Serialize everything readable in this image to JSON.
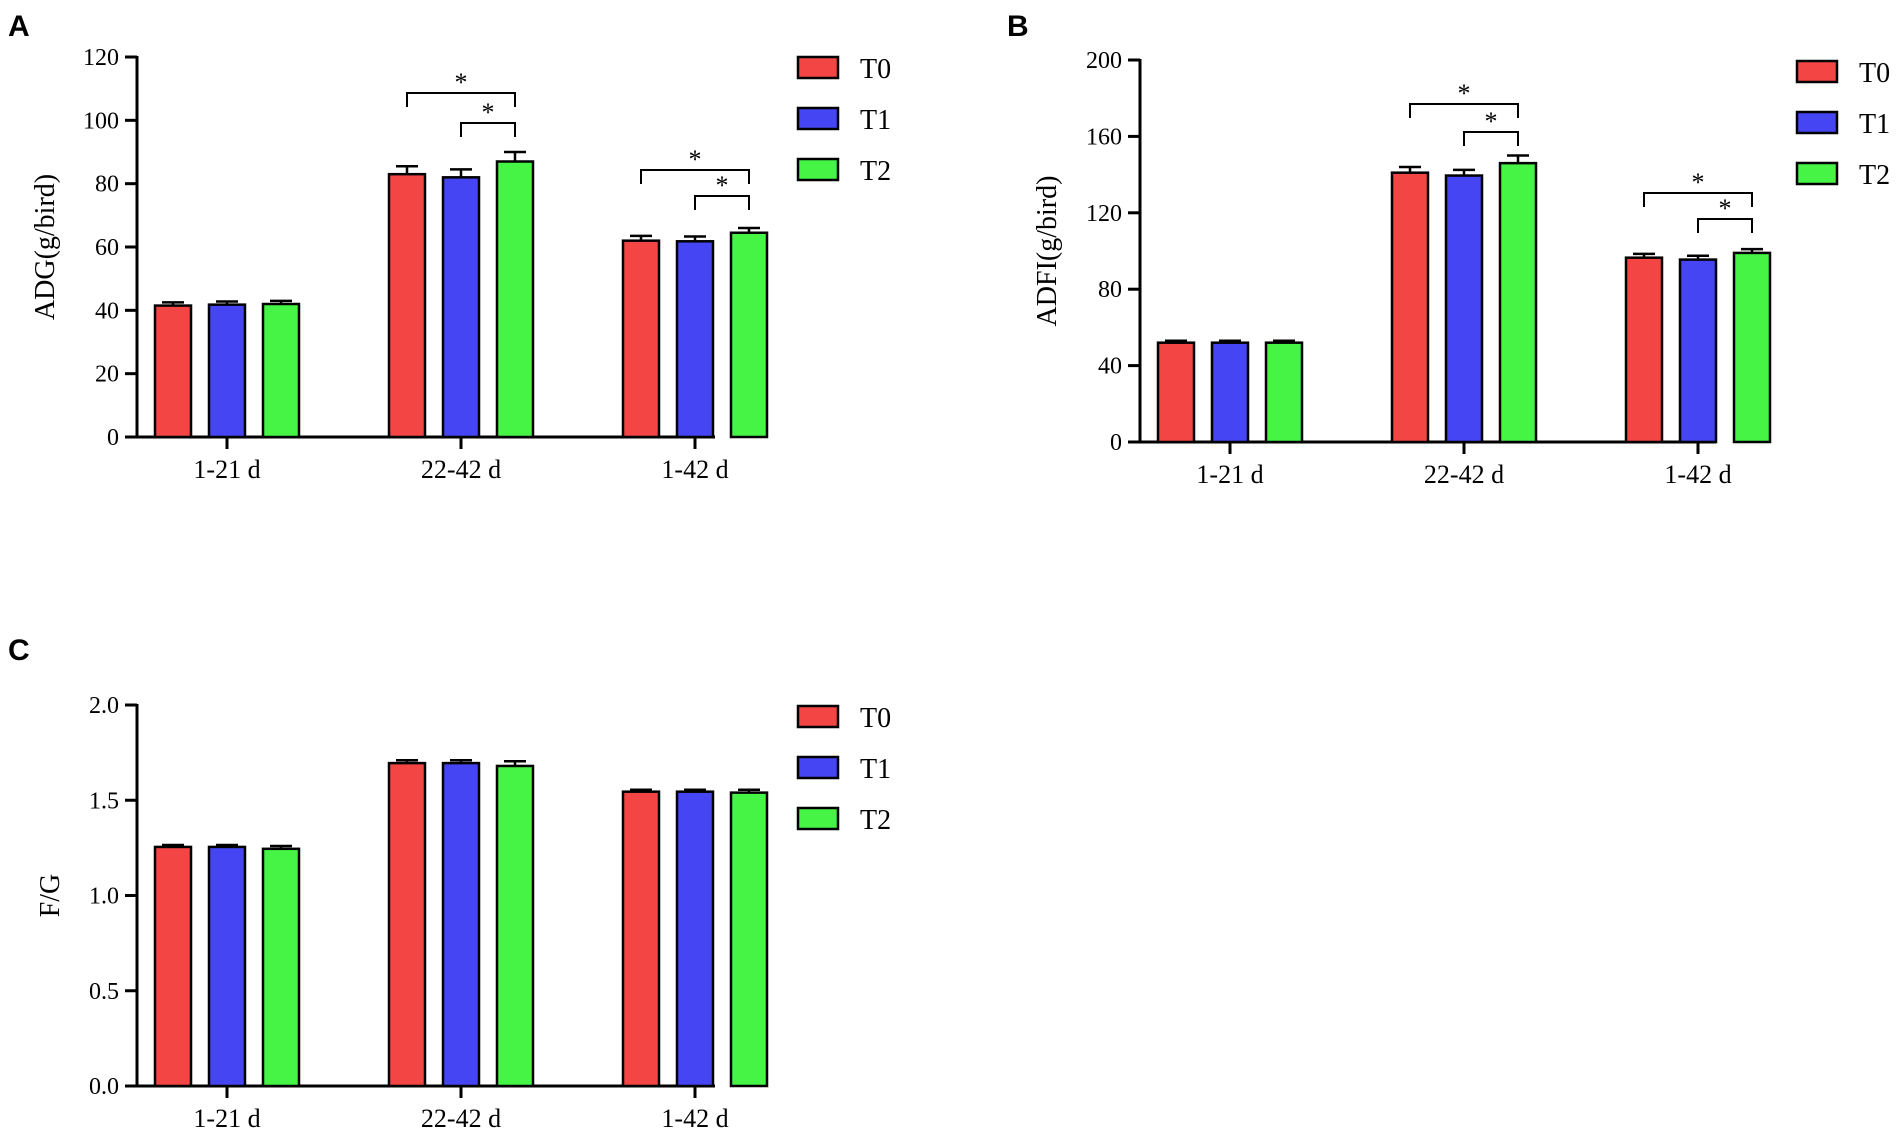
{
  "colors": {
    "T0": "#f44545",
    "T1": "#4545f4",
    "T2": "#45f445"
  },
  "legend": [
    {
      "name": "T0",
      "color": "#f44545"
    },
    {
      "name": "T1",
      "color": "#4545f4"
    },
    {
      "name": "T2",
      "color": "#45f445"
    }
  ],
  "chart_data": [
    {
      "panel": "A",
      "type": "bar",
      "ylabel": "ADG(g/bird)",
      "ylim": [
        0,
        120
      ],
      "yticks": [
        0,
        20,
        40,
        60,
        80,
        100,
        120
      ],
      "ytick_labels": [
        "0",
        "20",
        "40",
        "60",
        "80",
        "100",
        "120"
      ],
      "categories": [
        "1-21 d",
        "22-42 d",
        "1-42 d"
      ],
      "series": [
        {
          "name": "T0",
          "values": [
            41.5,
            83,
            62
          ],
          "errors": [
            1,
            2.5,
            1.5
          ]
        },
        {
          "name": "T1",
          "values": [
            41.8,
            82,
            61.8
          ],
          "errors": [
            1,
            2.5,
            1.5
          ]
        },
        {
          "name": "T2",
          "values": [
            42,
            87,
            64.5
          ],
          "errors": [
            1,
            3,
            1.5
          ]
        }
      ],
      "significance": [
        {
          "category": 1,
          "from": "T0",
          "to": "T2",
          "label": "*"
        },
        {
          "category": 1,
          "from": "T1",
          "to": "T2",
          "label": "*"
        },
        {
          "category": 2,
          "from": "T0",
          "to": "T2",
          "label": "*"
        },
        {
          "category": 2,
          "from": "T1",
          "to": "T2",
          "label": "*"
        }
      ],
      "legend_position": "top-right"
    },
    {
      "panel": "B",
      "type": "bar",
      "ylabel": "ADFI(g/bird)",
      "ylim": [
        0,
        200
      ],
      "yticks": [
        0,
        40,
        80,
        120,
        160,
        200
      ],
      "ytick_labels": [
        "0",
        "40",
        "80",
        "120",
        "160",
        "200"
      ],
      "categories": [
        "1-21 d",
        "22-42 d",
        "1-42 d"
      ],
      "series": [
        {
          "name": "T0",
          "values": [
            52,
            141,
            96.5
          ],
          "errors": [
            1,
            3,
            2
          ]
        },
        {
          "name": "T1",
          "values": [
            52,
            139.5,
            95.5
          ],
          "errors": [
            1,
            3,
            2
          ]
        },
        {
          "name": "T2",
          "values": [
            52,
            146,
            99
          ],
          "errors": [
            1,
            4,
            2
          ]
        }
      ],
      "significance": [
        {
          "category": 1,
          "from": "T0",
          "to": "T2",
          "label": "*"
        },
        {
          "category": 1,
          "from": "T1",
          "to": "T2",
          "label": "*"
        },
        {
          "category": 2,
          "from": "T0",
          "to": "T2",
          "label": "*"
        },
        {
          "category": 2,
          "from": "T1",
          "to": "T2",
          "label": "*"
        }
      ],
      "legend_position": "top-right"
    },
    {
      "panel": "C",
      "type": "bar",
      "ylabel": "F/G",
      "ylim": [
        0,
        2.0
      ],
      "yticks": [
        0,
        0.5,
        1.0,
        1.5,
        2.0
      ],
      "ytick_labels": [
        "0.0",
        "0.5",
        "1.0",
        "1.5",
        "2.0"
      ],
      "categories": [
        "1-21 d",
        "22-42 d",
        "1-42 d"
      ],
      "series": [
        {
          "name": "T0",
          "values": [
            1.255,
            1.695,
            1.545
          ],
          "errors": [
            0.01,
            0.015,
            0.01
          ]
        },
        {
          "name": "T1",
          "values": [
            1.255,
            1.695,
            1.545
          ],
          "errors": [
            0.01,
            0.015,
            0.01
          ]
        },
        {
          "name": "T2",
          "values": [
            1.245,
            1.68,
            1.54
          ],
          "errors": [
            0.015,
            0.025,
            0.015
          ]
        }
      ],
      "significance": [],
      "legend_position": "top-right"
    }
  ]
}
